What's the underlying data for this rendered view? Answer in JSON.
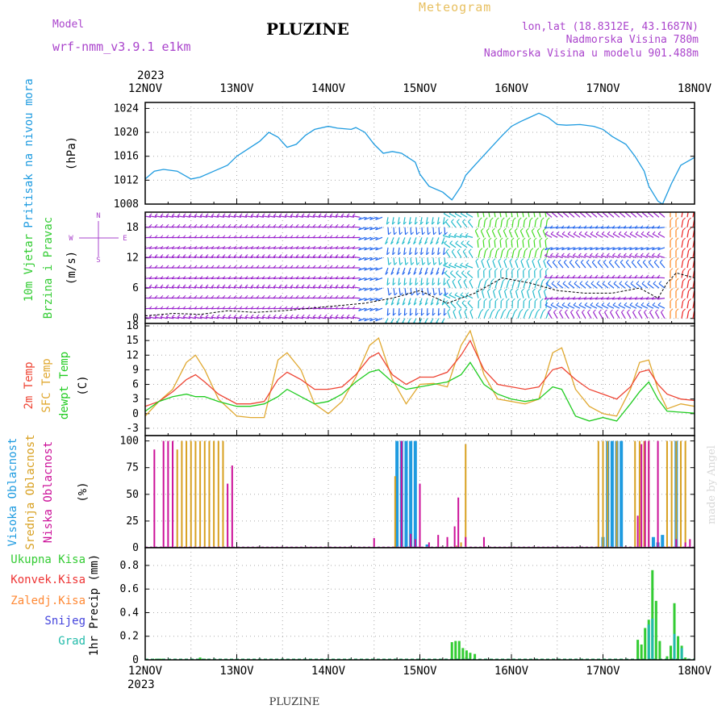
{
  "header": {
    "model_label": "Model",
    "model_name": "wrf-nmm_v3.9.1 e1km",
    "station_title": "PLUZINE",
    "meteogram_label": "Meteogram",
    "lonlat": "lon,lat (18.8312E, 43.1687N)",
    "altitude": "Nadmorska Visina 780m",
    "model_altitude": "Nadmorska Visina u modelu 901.488m"
  },
  "footer": {
    "station": "PLUZINE",
    "credit": "made by Angel"
  },
  "colors": {
    "pressure": "#1e9be0",
    "t2m": "#ee4433",
    "sfc": "#e0a830",
    "dewpt": "#22cc22",
    "high_cloud": "#1e9be0",
    "mid_cloud": "#d8a020",
    "low_cloud": "#cc1199",
    "total_precip": "#33cc33",
    "conv_precip": "#ee3333",
    "freezing": "#ff8833",
    "snow": "#4444dd",
    "hail": "#22bbaa",
    "wind_purple": "#9922cc",
    "wind_blue": "#2266ee",
    "wind_cyan": "#22bbcc",
    "wind_green": "#44dd22",
    "wind_orange": "#ff8822",
    "wind_red": "#ee2222",
    "header_purple": "#aa44cc",
    "header_gold": "#e8c060"
  },
  "chart_data": [
    {
      "type": "line",
      "panel": "pressure",
      "ylabel": [
        "Pritisak na nivou mora",
        "(hPa)"
      ],
      "yticks": [
        1008,
        1012,
        1016,
        1020,
        1024
      ],
      "ylim": [
        1008,
        1025
      ],
      "grid": true,
      "top_year": "2023",
      "xtick_labels": [
        "12NOV",
        "13NOV",
        "14NOV",
        "15NOV",
        "16NOV",
        "17NOV",
        "18NOV"
      ],
      "series": [
        {
          "key": "pressure",
          "x": [
            0,
            0.1,
            0.2,
            0.35,
            0.5,
            0.6,
            0.75,
            0.9,
            1.0,
            1.1,
            1.25,
            1.35,
            1.45,
            1.55,
            1.65,
            1.75,
            1.85,
            2.0,
            2.1,
            2.25,
            2.3,
            2.4,
            2.5,
            2.6,
            2.7,
            2.8,
            2.95,
            3.0,
            3.1,
            3.25,
            3.35,
            3.45,
            3.5,
            3.6,
            3.75,
            3.9,
            4.0,
            4.1,
            4.2,
            4.3,
            4.4,
            4.5,
            4.6,
            4.75,
            4.9,
            5.0,
            5.1,
            5.25,
            5.35,
            5.45,
            5.5,
            5.6,
            5.65,
            5.75,
            5.85,
            6.0
          ],
          "y": [
            1012.2,
            1013.5,
            1013.8,
            1013.5,
            1012.2,
            1012.5,
            1013.5,
            1014.5,
            1016,
            1017,
            1018.5,
            1020,
            1019.2,
            1017.5,
            1018,
            1019.5,
            1020.5,
            1021,
            1020.7,
            1020.5,
            1020.8,
            1020,
            1018,
            1016.5,
            1016.8,
            1016.5,
            1015,
            1013,
            1011,
            1010,
            1008.7,
            1011,
            1012.8,
            1014.5,
            1017,
            1019.5,
            1021,
            1021.8,
            1022.5,
            1023.2,
            1022.5,
            1021.3,
            1021.2,
            1021.3,
            1021,
            1020.5,
            1019.3,
            1018,
            1016,
            1013.5,
            1011,
            1008.5,
            1008,
            1011.5,
            1014.5,
            1015.8
          ]
        }
      ]
    },
    {
      "type": "barbs",
      "panel": "wind",
      "ylabel": [
        "10m Vjetar",
        "Brzina i Pravac",
        "(m/s)"
      ],
      "direction_legend": [
        "N",
        "W",
        "E",
        "S"
      ],
      "yticks": [
        0,
        6,
        12,
        18
      ],
      "ylim": [
        -1,
        21
      ],
      "grid": true,
      "rows": [
        0,
        2,
        4,
        6,
        8,
        10,
        12,
        14,
        16,
        18,
        20
      ],
      "speed_series": {
        "x": [
          0,
          0.3,
          0.6,
          0.9,
          1.2,
          1.5,
          1.8,
          2.1,
          2.4,
          2.7,
          3.0,
          3.3,
          3.6,
          3.9,
          4.2,
          4.5,
          4.8,
          5.1,
          5.4,
          5.6,
          5.7,
          5.8,
          6.0
        ],
        "y": [
          0.5,
          1,
          0.8,
          1.5,
          1.2,
          1.5,
          2,
          2.5,
          3,
          4,
          5.5,
          3,
          5,
          8,
          7,
          5.5,
          5,
          5,
          6,
          4,
          7,
          9,
          8
        ]
      }
    },
    {
      "type": "line",
      "panel": "temperature",
      "ylabel": [
        "2m Temp",
        "SFC Temp",
        "dewpt Temp",
        "(C)"
      ],
      "yticks": [
        -3,
        0,
        3,
        6,
        9,
        12,
        15,
        18
      ],
      "ylim": [
        -4.5,
        18.5
      ],
      "grid": true,
      "series": [
        {
          "key": "sfc",
          "name": "SFC Temp",
          "x": [
            0,
            0.15,
            0.3,
            0.45,
            0.55,
            0.65,
            0.8,
            1.0,
            1.15,
            1.3,
            1.45,
            1.55,
            1.7,
            1.85,
            2.0,
            2.15,
            2.3,
            2.45,
            2.55,
            2.7,
            2.85,
            3.0,
            3.15,
            3.3,
            3.45,
            3.55,
            3.7,
            3.85,
            4.0,
            4.15,
            4.3,
            4.45,
            4.55,
            4.7,
            4.85,
            5.0,
            5.15,
            5.3,
            5.4,
            5.5,
            5.6,
            5.7,
            5.85,
            6.0
          ],
          "y": [
            -0.5,
            2.5,
            5,
            10.5,
            12,
            9,
            3,
            -0.5,
            -0.8,
            -0.8,
            11,
            12.5,
            9,
            2,
            0,
            2.5,
            7.5,
            14,
            15.5,
            7,
            2,
            6,
            6.2,
            5.5,
            14,
            17,
            8,
            3,
            2.5,
            2,
            3,
            12.5,
            13.5,
            5,
            1.5,
            0,
            -0.5,
            5,
            10.5,
            11,
            5,
            1,
            2,
            1.5
          ]
        },
        {
          "key": "t2m",
          "name": "2m Temp",
          "x": [
            0,
            0.15,
            0.3,
            0.45,
            0.55,
            0.65,
            0.8,
            1.0,
            1.15,
            1.3,
            1.45,
            1.55,
            1.7,
            1.85,
            2.0,
            2.15,
            2.3,
            2.45,
            2.55,
            2.7,
            2.85,
            3.0,
            3.15,
            3.3,
            3.45,
            3.55,
            3.7,
            3.85,
            4.0,
            4.15,
            4.3,
            4.45,
            4.55,
            4.7,
            4.85,
            5.0,
            5.15,
            5.3,
            5.4,
            5.5,
            5.6,
            5.7,
            5.85,
            6.0
          ],
          "y": [
            1.5,
            2.5,
            4.5,
            7,
            8,
            6.5,
            4,
            2,
            2,
            2.5,
            7,
            8.5,
            7,
            5,
            5,
            5.5,
            8,
            11.5,
            12.5,
            8,
            6,
            7.5,
            7.5,
            8.5,
            12,
            15,
            9,
            6,
            5.5,
            5,
            5.5,
            9,
            9.5,
            7,
            5,
            4,
            3,
            5.5,
            8.5,
            9,
            6,
            4,
            3,
            2.7
          ]
        },
        {
          "key": "dewpt",
          "name": "dewpt Temp",
          "x": [
            0,
            0.15,
            0.3,
            0.45,
            0.55,
            0.65,
            0.8,
            1.0,
            1.15,
            1.3,
            1.45,
            1.55,
            1.7,
            1.85,
            2.0,
            2.15,
            2.3,
            2.45,
            2.55,
            2.7,
            2.85,
            3.0,
            3.15,
            3.3,
            3.45,
            3.55,
            3.7,
            3.85,
            4.0,
            4.15,
            4.3,
            4.45,
            4.55,
            4.7,
            4.85,
            5.0,
            5.15,
            5.3,
            5.4,
            5.5,
            5.6,
            5.7,
            5.85,
            6.0
          ],
          "y": [
            0.5,
            2.5,
            3.5,
            4,
            3.5,
            3.5,
            2.5,
            1.5,
            1.5,
            2,
            3.5,
            5,
            3.5,
            2,
            2.5,
            4,
            6.5,
            8.5,
            9,
            6.5,
            5,
            5.5,
            6,
            6.5,
            8,
            10.5,
            6,
            4,
            3,
            2.5,
            3,
            5.5,
            5,
            -0.5,
            -1.5,
            -0.8,
            -1.5,
            2,
            4.5,
            6.5,
            3,
            0.5,
            0.3,
            0.1
          ]
        }
      ]
    },
    {
      "type": "bar",
      "panel": "clouds",
      "ylabel": [
        "Visoka Oblacnost",
        "Srednja Oblacnost",
        "Niska Oblacnost",
        "(%)"
      ],
      "yticks": [
        0,
        25,
        50,
        75,
        100
      ],
      "ylim": [
        0,
        105
      ],
      "grid": true,
      "series": [
        {
          "key": "high_cloud",
          "name": "Visoka Oblacnost",
          "x": [
            2.75,
            2.8,
            2.85,
            2.9,
            2.95,
            3.08,
            5.0,
            5.05,
            5.1,
            5.15,
            5.2,
            5.55,
            5.6,
            5.65,
            5.8
          ],
          "values": [
            100,
            100,
            100,
            100,
            100,
            3,
            10,
            100,
            100,
            100,
            100,
            10,
            5,
            12,
            100
          ]
        },
        {
          "key": "mid_cloud",
          "name": "Srednja Oblacnost",
          "x": [
            0.35,
            0.4,
            0.45,
            0.5,
            0.55,
            0.6,
            0.65,
            0.7,
            0.75,
            0.8,
            0.85,
            2.73,
            3.4,
            3.45,
            3.5,
            4.95,
            5.0,
            5.05,
            5.15,
            5.35,
            5.4,
            5.45,
            5.5,
            5.7,
            5.75,
            5.8,
            5.85,
            5.9
          ],
          "values": [
            92,
            100,
            100,
            100,
            100,
            100,
            100,
            100,
            100,
            100,
            100,
            67,
            2,
            5,
            97,
            100,
            100,
            100,
            100,
            100,
            100,
            100,
            100,
            100,
            100,
            100,
            100,
            100
          ]
        },
        {
          "key": "low_cloud",
          "name": "Niska Oblacnost",
          "x": [
            0.1,
            0.2,
            0.25,
            0.3,
            0.9,
            0.95,
            2.5,
            2.8,
            2.9,
            2.95,
            3.0,
            3.1,
            3.2,
            3.3,
            3.38,
            3.42,
            3.5,
            3.7,
            5.38,
            5.42,
            5.46,
            5.5,
            5.6,
            5.8,
            5.9,
            5.95
          ],
          "values": [
            92,
            100,
            100,
            100,
            60,
            77,
            9,
            100,
            13,
            8,
            60,
            5,
            12,
            10,
            20,
            47,
            10,
            10,
            30,
            97,
            100,
            100,
            100,
            8,
            5,
            8
          ]
        }
      ]
    },
    {
      "type": "bar",
      "panel": "precip",
      "ylabel": [
        "1hr Precip (mm)"
      ],
      "legend": [
        "Ukupna Kisa",
        "Konvek.Kisa",
        "Zaledj.Kisa",
        "Snijeg",
        "Grad"
      ],
      "yticks": [
        0,
        0.2,
        0.4,
        0.6,
        0.8
      ],
      "ylim": [
        0,
        0.95
      ],
      "grid": true,
      "bottom_year": "2023",
      "series": [
        {
          "key": "total_precip",
          "name": "Ukupna Kisa",
          "x": [
            0.12,
            0.17,
            0.6,
            0.65,
            3.35,
            3.39,
            3.43,
            3.47,
            3.51,
            3.55,
            3.6,
            5.38,
            5.42,
            5.46,
            5.5,
            5.54,
            5.58,
            5.62,
            5.7,
            5.74,
            5.78,
            5.82,
            5.86,
            5.9
          ],
          "values": [
            0.01,
            0.01,
            0.02,
            0.01,
            0.15,
            0.16,
            0.16,
            0.1,
            0.08,
            0.06,
            0.05,
            0.17,
            0.13,
            0.27,
            0.34,
            0.76,
            0.5,
            0.16,
            0.03,
            0.12,
            0.48,
            0.2,
            0.12,
            0.02
          ]
        },
        {
          "key": "hail",
          "name": "Grad",
          "x": [
            5.5,
            5.54,
            5.78,
            5.86
          ],
          "values": [
            0.3,
            0.35,
            0.22,
            0.1
          ]
        }
      ]
    }
  ]
}
